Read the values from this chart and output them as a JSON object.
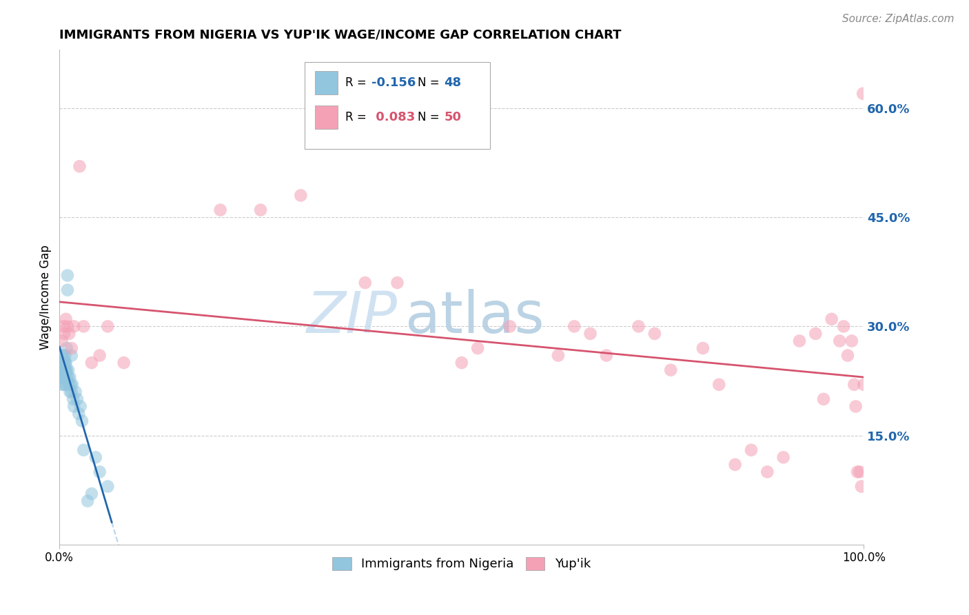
{
  "title": "IMMIGRANTS FROM NIGERIA VS YUP'IK WAGE/INCOME GAP CORRELATION CHART",
  "source": "Source: ZipAtlas.com",
  "ylabel": "Wage/Income Gap",
  "legend_label1": "Immigrants from Nigeria",
  "legend_label2": "Yup'ik",
  "color_blue": "#92c5de",
  "color_pink": "#f4a0b5",
  "color_blue_line": "#2166ac",
  "color_pink_line": "#d6546e",
  "color_blue_text": "#2166ac",
  "color_pink_text": "#d6546e",
  "color_dashed": "#b8d4e8",
  "yticks": [
    0.0,
    0.15,
    0.3,
    0.45,
    0.6
  ],
  "ytick_labels": [
    "",
    "15.0%",
    "30.0%",
    "45.0%",
    "60.0%"
  ],
  "xlim": [
    0.0,
    1.0
  ],
  "ylim": [
    0.0,
    0.68
  ],
  "nigeria_x": [
    0.002,
    0.003,
    0.003,
    0.004,
    0.004,
    0.004,
    0.005,
    0.005,
    0.005,
    0.005,
    0.005,
    0.006,
    0.006,
    0.006,
    0.007,
    0.007,
    0.007,
    0.007,
    0.008,
    0.008,
    0.008,
    0.009,
    0.009,
    0.009,
    0.01,
    0.01,
    0.011,
    0.011,
    0.012,
    0.013,
    0.013,
    0.014,
    0.015,
    0.015,
    0.016,
    0.017,
    0.018,
    0.02,
    0.022,
    0.024,
    0.026,
    0.028,
    0.03,
    0.035,
    0.04,
    0.045,
    0.05,
    0.06
  ],
  "nigeria_y": [
    0.25,
    0.24,
    0.26,
    0.25,
    0.23,
    0.22,
    0.26,
    0.25,
    0.24,
    0.23,
    0.22,
    0.25,
    0.24,
    0.23,
    0.26,
    0.25,
    0.24,
    0.23,
    0.25,
    0.24,
    0.22,
    0.24,
    0.23,
    0.27,
    0.37,
    0.35,
    0.24,
    0.23,
    0.22,
    0.21,
    0.23,
    0.22,
    0.21,
    0.26,
    0.22,
    0.2,
    0.19,
    0.21,
    0.2,
    0.18,
    0.19,
    0.17,
    0.13,
    0.06,
    0.07,
    0.12,
    0.1,
    0.08
  ],
  "yupik_x": [
    0.003,
    0.005,
    0.006,
    0.008,
    0.01,
    0.012,
    0.015,
    0.018,
    0.025,
    0.03,
    0.04,
    0.05,
    0.06,
    0.08,
    0.2,
    0.25,
    0.3,
    0.38,
    0.42,
    0.5,
    0.52,
    0.56,
    0.62,
    0.64,
    0.66,
    0.68,
    0.72,
    0.74,
    0.76,
    0.8,
    0.82,
    0.84,
    0.86,
    0.88,
    0.9,
    0.92,
    0.94,
    0.95,
    0.96,
    0.97,
    0.975,
    0.98,
    0.985,
    0.988,
    0.99,
    0.992,
    0.995,
    0.997,
    0.999,
    1.0
  ],
  "yupik_y": [
    0.28,
    0.3,
    0.29,
    0.31,
    0.3,
    0.29,
    0.27,
    0.3,
    0.52,
    0.3,
    0.25,
    0.26,
    0.3,
    0.25,
    0.46,
    0.46,
    0.48,
    0.36,
    0.36,
    0.25,
    0.27,
    0.3,
    0.26,
    0.3,
    0.29,
    0.26,
    0.3,
    0.29,
    0.24,
    0.27,
    0.22,
    0.11,
    0.13,
    0.1,
    0.12,
    0.28,
    0.29,
    0.2,
    0.31,
    0.28,
    0.3,
    0.26,
    0.28,
    0.22,
    0.19,
    0.1,
    0.1,
    0.08,
    0.62,
    0.22
  ]
}
